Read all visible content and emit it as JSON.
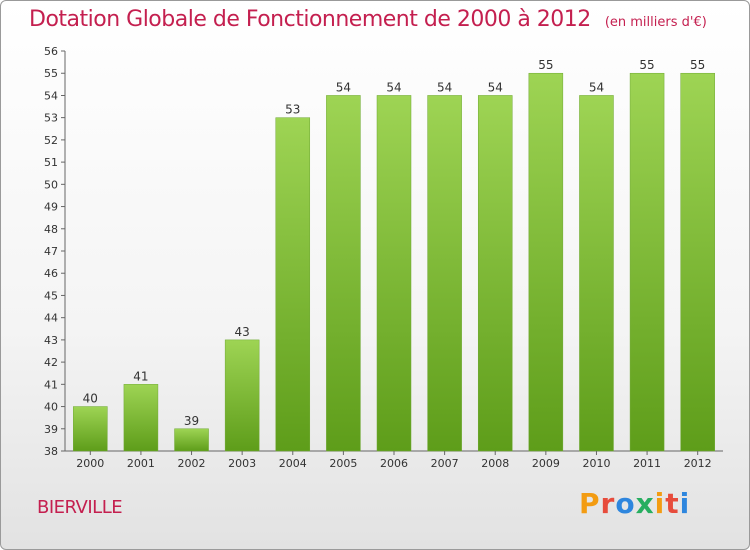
{
  "page": {
    "title": "Dotation Globale de Fonctionnement de 2000 à 2012",
    "unit_note": "(en milliers d'€)",
    "commune": "BIERVILLE",
    "logo": {
      "letters": [
        "P",
        "r",
        "o",
        "x",
        "i",
        "t",
        "i"
      ],
      "colors": [
        "#f39c12",
        "#e74c3c",
        "#2e86de",
        "#27ae60",
        "#f39c12",
        "#e74c3c",
        "#2e86de"
      ]
    }
  },
  "chart_data": {
    "type": "bar",
    "title": "Dotation Globale de Fonctionnement de 2000 à 2012",
    "subtitle": "(en milliers d'€)",
    "categories": [
      "2000",
      "2001",
      "2002",
      "2003",
      "2004",
      "2005",
      "2006",
      "2007",
      "2008",
      "2009",
      "2010",
      "2011",
      "2012"
    ],
    "values": [
      40,
      41,
      39,
      43,
      53,
      54,
      54,
      54,
      54,
      55,
      54,
      55,
      55
    ],
    "data_labels": [
      "40",
      "41",
      "39",
      "43",
      "53",
      "54",
      "54",
      "54",
      "54",
      "55",
      "54",
      "55",
      "55"
    ],
    "yticks": [
      "38",
      "39",
      "40",
      "41",
      "42",
      "43",
      "44",
      "45",
      "46",
      "47",
      "48",
      "49",
      "50",
      "51",
      "52",
      "53",
      "54",
      "55",
      "56"
    ],
    "ylim": [
      38,
      56
    ],
    "grid": false,
    "bar_color": "#7fc23a",
    "xlabel": "",
    "ylabel": ""
  }
}
